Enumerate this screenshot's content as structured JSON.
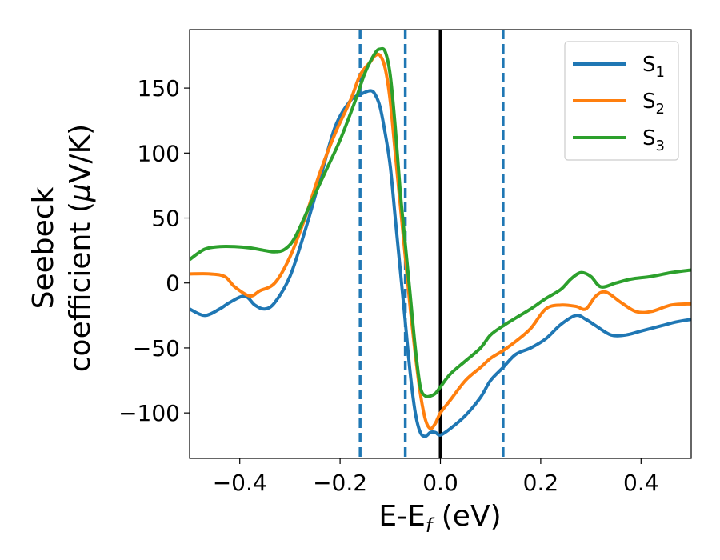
{
  "chart_data": {
    "type": "line",
    "title": "",
    "xlabel": {
      "main": "E-E",
      "sub": "f",
      "unit": " (eV)"
    },
    "ylabel": {
      "line1": "Seebeck",
      "line2": "coefficient  (",
      "mu": "μ",
      "line2_end": "V/K)"
    },
    "xlim": [
      -0.5,
      0.5
    ],
    "ylim": [
      -135,
      195
    ],
    "xticks": [
      -0.4,
      -0.2,
      0.0,
      0.2,
      0.4
    ],
    "xtick_labels": [
      "−0.4",
      "−0.2",
      "0.0",
      "0.2",
      "0.4"
    ],
    "yticks": [
      -100,
      -50,
      0,
      50,
      100,
      150
    ],
    "ytick_labels": [
      "−100",
      "−50",
      "0",
      "50",
      "100",
      "150"
    ],
    "grid": false,
    "legend_position": "top-right",
    "vlines": [
      {
        "x": 0.0,
        "style": "solid",
        "color": "#000000"
      },
      {
        "x": -0.16,
        "style": "dashed",
        "color": "#1f77b4"
      },
      {
        "x": -0.07,
        "style": "dashed",
        "color": "#1f77b4"
      },
      {
        "x": 0.125,
        "style": "dashed",
        "color": "#1f77b4"
      }
    ],
    "series": [
      {
        "name": "S",
        "sub": "1",
        "color": "#1f77b4",
        "x": [
          -0.5,
          -0.47,
          -0.44,
          -0.42,
          -0.39,
          -0.37,
          -0.35,
          -0.33,
          -0.3,
          -0.27,
          -0.24,
          -0.21,
          -0.18,
          -0.16,
          -0.14,
          -0.13,
          -0.12,
          -0.11,
          -0.1,
          -0.09,
          -0.08,
          -0.07,
          -0.06,
          -0.05,
          -0.04,
          -0.03,
          -0.02,
          -0.01,
          0.0,
          0.02,
          0.05,
          0.08,
          0.1,
          0.125,
          0.15,
          0.18,
          0.21,
          0.24,
          0.27,
          0.29,
          0.31,
          0.34,
          0.37,
          0.4,
          0.44,
          0.47,
          0.5
        ],
        "y": [
          -20,
          -25,
          -20,
          -15,
          -10,
          -17,
          -20,
          -15,
          5,
          40,
          80,
          120,
          140,
          145,
          148,
          145,
          135,
          115,
          90,
          50,
          10,
          -30,
          -70,
          -100,
          -115,
          -118,
          -115,
          -115,
          -117,
          -112,
          -102,
          -88,
          -75,
          -65,
          -55,
          -50,
          -43,
          -32,
          -25,
          -28,
          -33,
          -40,
          -40,
          -37,
          -33,
          -30,
          -28
        ]
      },
      {
        "name": "S",
        "sub": "2",
        "color": "#ff7f0e",
        "x": [
          -0.5,
          -0.46,
          -0.43,
          -0.41,
          -0.38,
          -0.36,
          -0.33,
          -0.3,
          -0.27,
          -0.24,
          -0.21,
          -0.18,
          -0.16,
          -0.14,
          -0.13,
          -0.12,
          -0.11,
          -0.1,
          -0.09,
          -0.08,
          -0.07,
          -0.06,
          -0.05,
          -0.04,
          -0.03,
          -0.02,
          -0.01,
          0.0,
          0.02,
          0.05,
          0.08,
          0.1,
          0.125,
          0.15,
          0.18,
          0.21,
          0.24,
          0.27,
          0.29,
          0.31,
          0.33,
          0.36,
          0.39,
          0.42,
          0.46,
          0.5
        ],
        "y": [
          7,
          7,
          5,
          -3,
          -10,
          -6,
          0,
          20,
          50,
          85,
          115,
          140,
          160,
          170,
          175,
          175,
          165,
          140,
          100,
          60,
          20,
          -20,
          -55,
          -85,
          -105,
          -112,
          -108,
          -100,
          -90,
          -75,
          -65,
          -58,
          -52,
          -45,
          -35,
          -20,
          -17,
          -18,
          -20,
          -10,
          -7,
          -15,
          -22,
          -22,
          -17,
          -16
        ]
      },
      {
        "name": "S",
        "sub": "3",
        "color": "#2ca02c",
        "x": [
          -0.5,
          -0.47,
          -0.44,
          -0.41,
          -0.38,
          -0.35,
          -0.33,
          -0.31,
          -0.29,
          -0.26,
          -0.23,
          -0.2,
          -0.17,
          -0.15,
          -0.13,
          -0.12,
          -0.11,
          -0.1,
          -0.09,
          -0.08,
          -0.07,
          -0.06,
          -0.05,
          -0.04,
          -0.03,
          -0.02,
          -0.01,
          0.0,
          0.02,
          0.05,
          0.08,
          0.1,
          0.125,
          0.15,
          0.18,
          0.21,
          0.24,
          0.26,
          0.28,
          0.3,
          0.32,
          0.35,
          0.38,
          0.42,
          0.46,
          0.5
        ],
        "y": [
          18,
          26,
          28,
          28,
          27,
          25,
          24,
          26,
          35,
          60,
          85,
          110,
          140,
          162,
          177,
          180,
          178,
          160,
          120,
          70,
          30,
          -10,
          -50,
          -80,
          -87,
          -87,
          -85,
          -80,
          -70,
          -60,
          -50,
          -40,
          -33,
          -27,
          -20,
          -12,
          -5,
          3,
          8,
          5,
          -3,
          0,
          3,
          5,
          8,
          10
        ]
      }
    ]
  }
}
